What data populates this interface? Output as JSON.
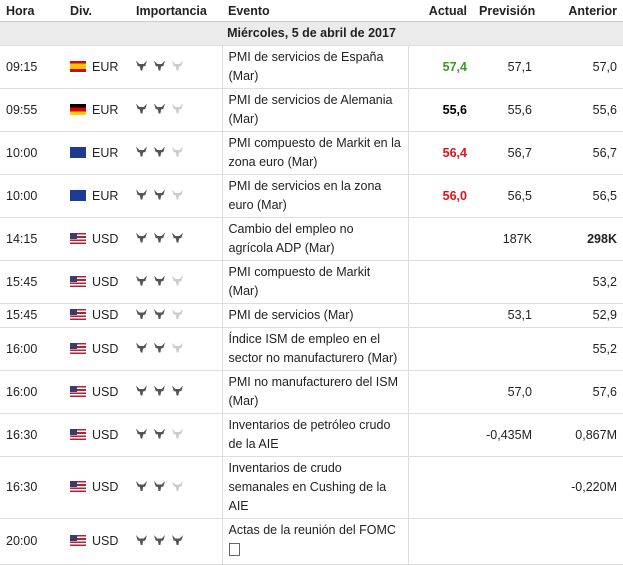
{
  "header": {
    "columns": [
      "Hora",
      "Div.",
      "Importancia",
      "Evento",
      "Actual",
      "Previsión",
      "Anterior"
    ]
  },
  "date": "Miércoles, 5 de abril de 2017",
  "rows": [
    {
      "time": "09:15",
      "flag": "es",
      "currency": "EUR",
      "importance": 2,
      "event": "PMI de servicios de España (Mar)",
      "actual": "57,4",
      "actual_color": "#3a9a1e",
      "forecast": "57,1",
      "previous": "57,0"
    },
    {
      "time": "09:55",
      "flag": "de",
      "currency": "EUR",
      "importance": 2,
      "event": "PMI de servicios de Alemania (Mar)",
      "actual": "55,6",
      "actual_color": "#000000",
      "forecast": "55,6",
      "previous": "55,6"
    },
    {
      "time": "10:00",
      "flag": "eu",
      "currency": "EUR",
      "importance": 2,
      "event": "PMI compuesto de Markit en la zona euro (Mar)",
      "actual": "56,4",
      "actual_color": "#e0111b",
      "forecast": "56,7",
      "previous": "56,7"
    },
    {
      "time": "10:00",
      "flag": "eu",
      "currency": "EUR",
      "importance": 2,
      "event": "PMI de servicios en la zona euro (Mar)",
      "actual": "56,0",
      "actual_color": "#e0111b",
      "forecast": "56,5",
      "previous": "56,5"
    },
    {
      "time": "14:15",
      "flag": "us",
      "currency": "USD",
      "importance": 3,
      "event": "Cambio del empleo no agrícola ADP (Mar)",
      "actual": null,
      "forecast": "187K",
      "previous": "298K",
      "previous_bold": true
    },
    {
      "time": "15:45",
      "flag": "us",
      "currency": "USD",
      "importance": 2,
      "event": "PMI compuesto de Markit (Mar)",
      "actual": null,
      "forecast": null,
      "previous": "53,2"
    },
    {
      "time": "15:45",
      "flag": "us",
      "currency": "USD",
      "importance": 2,
      "event": "PMI de servicios (Mar)",
      "actual": null,
      "forecast": "53,1",
      "previous": "52,9"
    },
    {
      "time": "16:00",
      "flag": "us",
      "currency": "USD",
      "importance": 2,
      "event": "Índice ISM de empleo en el sector no manufacturero (Mar)",
      "actual": null,
      "forecast": null,
      "previous": "55,2"
    },
    {
      "time": "16:00",
      "flag": "us",
      "currency": "USD",
      "importance": 3,
      "event": "PMI no manufacturero del ISM (Mar)",
      "actual": null,
      "forecast": "57,0",
      "previous": "57,6"
    },
    {
      "time": "16:30",
      "flag": "us",
      "currency": "USD",
      "importance": 2,
      "event": "Inventarios de petróleo crudo de la AIE",
      "actual": null,
      "forecast": "-0,435M",
      "previous": "0,867M"
    },
    {
      "time": "16:30",
      "flag": "us",
      "currency": "USD",
      "importance": 2,
      "event": "Inventarios de crudo semanales en Cushing de la AIE",
      "actual": null,
      "forecast": null,
      "previous": "-0,220M"
    },
    {
      "time": "20:00",
      "flag": "us",
      "currency": "USD",
      "importance": 3,
      "event": "Actas de la reunión del FOMC",
      "actual": null,
      "forecast": null,
      "previous": null,
      "document": true
    }
  ]
}
